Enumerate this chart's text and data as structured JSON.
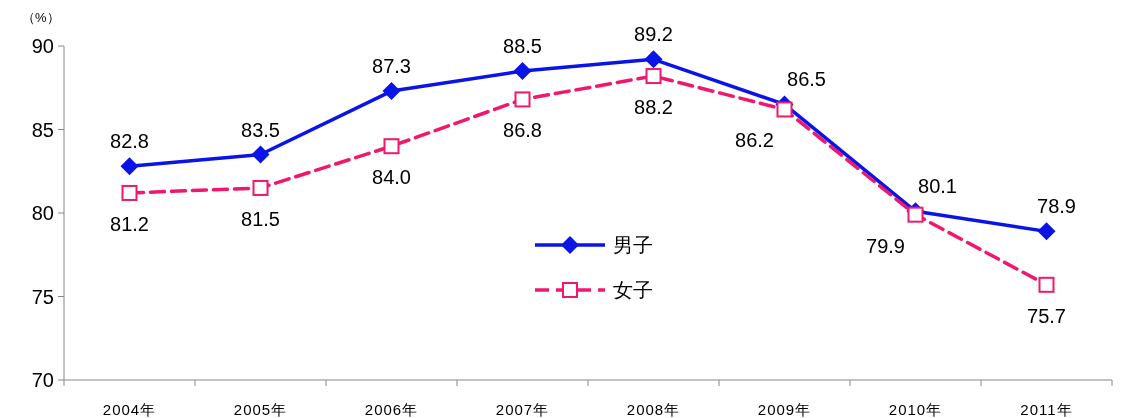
{
  "chart_data": {
    "type": "line",
    "ylabel": "（%）",
    "categories": [
      "2004年",
      "2005年",
      "2006年",
      "2007年",
      "2008年",
      "2009年",
      "2010年",
      "2011年"
    ],
    "series": [
      {
        "name": "男子",
        "color": "#0a14e6",
        "marker": "diamond",
        "line_style": "solid",
        "values": [
          82.8,
          83.5,
          87.3,
          88.5,
          89.2,
          86.5,
          80.1,
          78.9
        ],
        "value_labels": [
          "82.8",
          "83.5",
          "87.3",
          "88.5",
          "89.2",
          "86.5",
          "80.1",
          "78.9"
        ]
      },
      {
        "name": "女子",
        "color": "#f0186e",
        "marker": "square",
        "line_style": "dashed",
        "values": [
          81.2,
          81.5,
          84.0,
          86.8,
          88.2,
          86.2,
          79.9,
          75.7
        ],
        "value_labels": [
          "81.2",
          "81.5",
          "84.0",
          "86.8",
          "88.2",
          "86.2",
          "79.9",
          "75.7"
        ]
      }
    ],
    "ylim": [
      70,
      90
    ],
    "yticks": [
      70,
      75,
      80,
      85,
      90
    ],
    "legend": "center",
    "grid": false
  }
}
